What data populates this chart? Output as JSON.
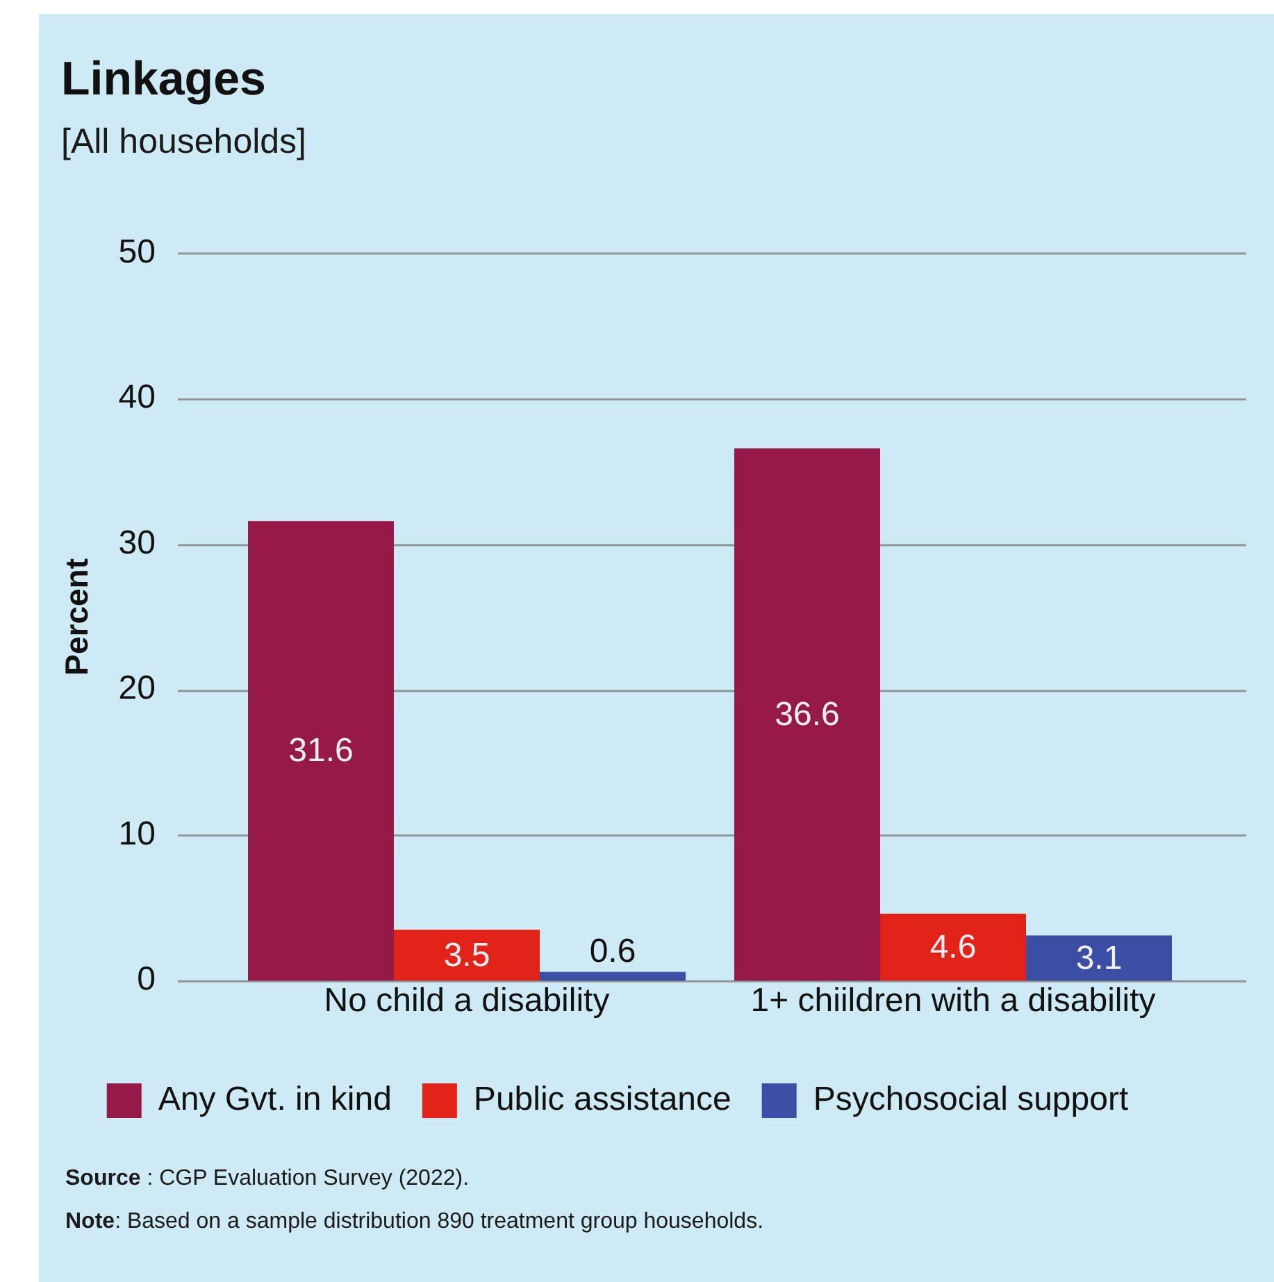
{
  "chart_data": {
    "type": "bar",
    "title": "Linkages",
    "subtitle": "[All households]",
    "ylabel": "Percent",
    "categories": [
      "No child a disability",
      "1+ chiildren with a disability"
    ],
    "series": [
      {
        "name": "Any Gvt. in kind",
        "color": "#961a48",
        "values": [
          31.6,
          36.6
        ]
      },
      {
        "name": "Public assistance",
        "color": "#e2231a",
        "values": [
          3.5,
          4.6
        ]
      },
      {
        "name": "Psychosocial support",
        "color": "#3a4fa3",
        "values": [
          0.6,
          3.1
        ]
      }
    ],
    "ylim": [
      0,
      50
    ],
    "yticks": [
      0,
      10,
      20,
      30,
      40,
      50
    ],
    "grid": "y",
    "legend": "bottom",
    "data_labels": true,
    "annotations": [
      "Source : CGP Evaluation Survey (2022).",
      "Note: Based on a sample distribution 890 treatment group households."
    ]
  }
}
